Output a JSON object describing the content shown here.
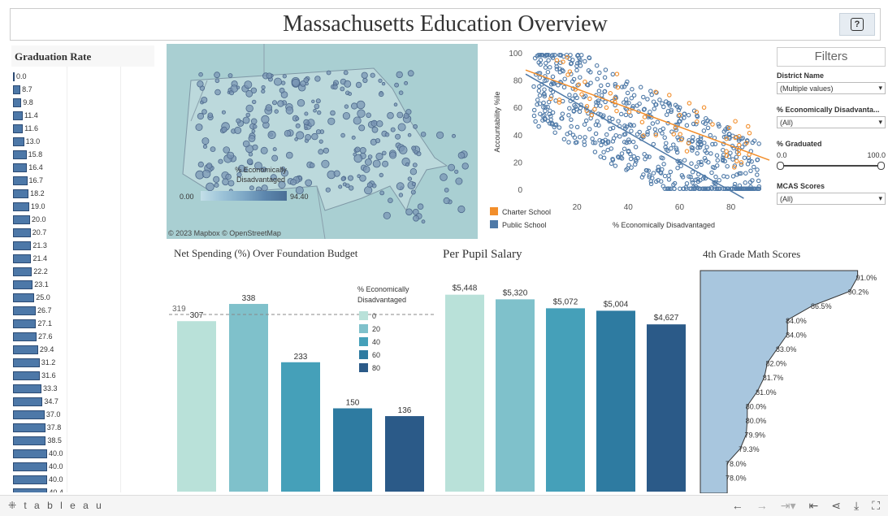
{
  "header": {
    "title": "Massachusetts Education Overview",
    "help_label": "?"
  },
  "graduation": {
    "title": "Graduation Rate",
    "values": [
      0.0,
      8.7,
      9.8,
      11.4,
      11.6,
      13.0,
      15.8,
      16.4,
      16.7,
      18.2,
      19.0,
      20.0,
      20.7,
      21.3,
      21.4,
      22.2,
      23.1,
      25.0,
      26.7,
      27.1,
      27.6,
      29.4,
      31.2,
      31.6,
      33.3,
      34.7,
      37.0,
      37.8,
      38.5,
      40.0,
      40.0,
      40.0,
      40.4
    ],
    "labels": [
      "0.0",
      "8.7",
      "9.8",
      "11.4",
      "11.6",
      "13.0",
      "15.8",
      "16.4",
      "16.7",
      "18.2",
      "19.0",
      "20.0",
      "20.7",
      "21.3",
      "21.4",
      "22.2",
      "23.1",
      "25.0",
      "26.7",
      "27.1",
      "27.6",
      "29.4",
      "31.2",
      "31.6",
      "33.3",
      "34.7",
      "37.0",
      "37.8",
      "38.5",
      "40.0",
      "40.0",
      "40.0",
      "40.4"
    ]
  },
  "map": {
    "legend_title": "% Economically Disadvantaged",
    "legend_min": "0.00",
    "legend_max": "94.40",
    "credit": "© 2023 Mapbox  © OpenStreetMap",
    "colors": {
      "water": "#a9cfd2",
      "land": "#bcd9dc",
      "dot": "#7a95b4",
      "dot_stroke": "#4e6a8c"
    }
  },
  "chart_data": [
    {
      "type": "scatter",
      "xlabel": "% Economically Disadvantaged",
      "ylabel": "Accountability %ile",
      "xticks": [
        20,
        40,
        60,
        80
      ],
      "yticks": [
        0,
        20,
        40,
        60,
        80,
        100
      ],
      "xlim": [
        0,
        95
      ],
      "ylim": [
        0,
        100
      ],
      "series": [
        {
          "name": "Charter School",
          "color": "#f28e2b",
          "trend": [
            [
              0,
              88
            ],
            [
              95,
              22
            ]
          ]
        },
        {
          "name": "Public School",
          "color": "#4e79a7",
          "trend": [
            [
              0,
              85
            ],
            [
              85,
              -6
            ]
          ]
        }
      ]
    },
    {
      "type": "bar",
      "title": "Net Spending (%) Over Foundation Budget",
      "legend_title": "% Economically Disadvantaged",
      "categories": [
        "0",
        "20",
        "40",
        "60",
        "80"
      ],
      "values": [
        307,
        338,
        233,
        150,
        136
      ],
      "labels": [
        "307",
        "338",
        "233",
        "150",
        "136"
      ],
      "reference_line": 319,
      "reference_label": "319",
      "colors": [
        "#b9e1d9",
        "#7fc1cb",
        "#45a0b9",
        "#2e7ba1",
        "#2b5a88"
      ],
      "ylim": [
        0,
        360
      ]
    },
    {
      "type": "bar",
      "title": "Per Pupil Salary",
      "categories": [
        "0",
        "20",
        "40",
        "60",
        "80"
      ],
      "values": [
        5448,
        5320,
        5072,
        5004,
        4627
      ],
      "labels": [
        "$5,448",
        "$5,320",
        "$5,072",
        "$5,004",
        "$4,627"
      ],
      "colors": [
        "#b9e1d9",
        "#7fc1cb",
        "#45a0b9",
        "#2e7ba1",
        "#2b5a88"
      ],
      "ylim": [
        0,
        5800
      ]
    },
    {
      "type": "area",
      "title": "4th Grade Math Scores",
      "values": [
        91.0,
        90.2,
        86.5,
        84.0,
        84.0,
        83.0,
        82.0,
        81.7,
        81.0,
        80.0,
        80.0,
        79.9,
        79.3,
        78.0,
        78.0
      ],
      "labels": [
        "91.0%",
        "90.2%",
        "86.5%",
        "84.0%",
        "84.0%",
        "83.0%",
        "82.0%",
        "81.7%",
        "81.0%",
        "80.0%",
        "80.0%",
        "79.9%",
        "79.3%",
        "78.0%",
        "78.0%"
      ],
      "color": "#a8c6de"
    }
  ],
  "filters": {
    "title": "Filters",
    "district_label": "District Name",
    "district_value": "(Multiple values)",
    "econ_label": "% Economically Disadvanta...",
    "econ_value": "(All)",
    "grad_label": "% Graduated",
    "grad_min": "0.0",
    "grad_max": "100.0",
    "grad_range": [
      0,
      100
    ],
    "mcas_label": "MCAS Scores",
    "mcas_value": "(All)"
  },
  "footer": {
    "logo": "⁜ t a b l e a u"
  }
}
